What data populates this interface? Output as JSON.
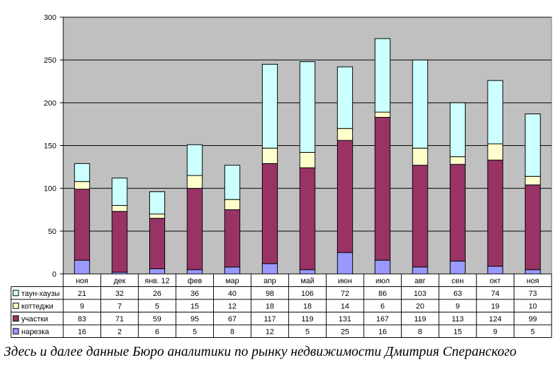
{
  "chart_data": {
    "type": "bar",
    "stacked": true,
    "categories": [
      "ноя",
      "дек",
      "янв. 12",
      "фев",
      "мар",
      "апр",
      "май",
      "июн",
      "июл",
      "авг",
      "сен",
      "окт",
      "ноя"
    ],
    "ylim": [
      0,
      300
    ],
    "yticks": [
      0,
      50,
      100,
      150,
      200,
      250,
      300
    ],
    "grid": true,
    "legend": "data-table-left",
    "series": [
      {
        "name": "нарезка",
        "color": "#9999ff",
        "values": [
          16,
          2,
          6,
          5,
          8,
          12,
          5,
          25,
          16,
          8,
          15,
          9,
          5
        ]
      },
      {
        "name": "участки",
        "color": "#993366",
        "values": [
          83,
          71,
          59,
          95,
          67,
          117,
          119,
          131,
          167,
          119,
          113,
          124,
          99
        ]
      },
      {
        "name": "коттеджи",
        "color": "#ffffcc",
        "values": [
          9,
          7,
          5,
          15,
          12,
          18,
          18,
          14,
          6,
          20,
          9,
          19,
          10
        ]
      },
      {
        "name": "таун-хаузы",
        "color": "#ccffff",
        "values": [
          21,
          32,
          26,
          36,
          40,
          98,
          106,
          72,
          86,
          103,
          63,
          74,
          73
        ]
      }
    ],
    "plot_background": "#c0c0c0"
  },
  "caption": "Здесь и далее данные Бюро аналитики по рынку недвижимости Дмитрия Сперанского"
}
